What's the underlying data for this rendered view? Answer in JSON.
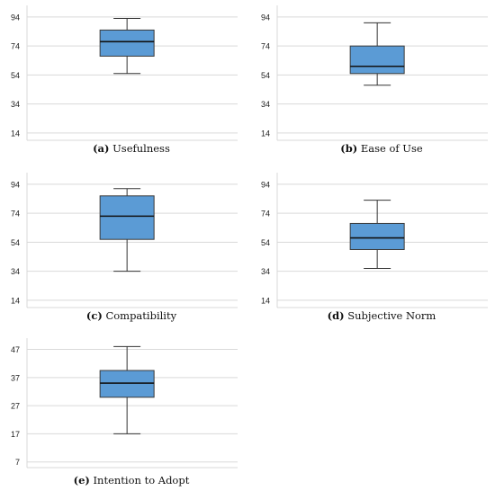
{
  "chart_data": [
    {
      "type": "boxplot",
      "caption_letter": "(a)",
      "caption_text": "Usefulness",
      "yticks": [
        14,
        34,
        54,
        74,
        94
      ],
      "ylim": [
        9,
        102
      ],
      "box": {
        "whisker_low": 55,
        "q1": 67,
        "median": 77,
        "q3": 85,
        "whisker_high": 93
      },
      "box_color": "#5b9bd5"
    },
    {
      "type": "boxplot",
      "caption_letter": "(b)",
      "caption_text": "Ease of Use",
      "yticks": [
        14,
        34,
        54,
        74,
        94
      ],
      "ylim": [
        9,
        102
      ],
      "box": {
        "whisker_low": 47,
        "q1": 55,
        "median": 60,
        "q3": 74,
        "whisker_high": 90
      },
      "box_color": "#5b9bd5"
    },
    {
      "type": "boxplot",
      "caption_letter": "(c)",
      "caption_text": "Compatibility",
      "yticks": [
        14,
        34,
        54,
        74,
        94
      ],
      "ylim": [
        9,
        102
      ],
      "box": {
        "whisker_low": 34,
        "q1": 56,
        "median": 72,
        "q3": 86,
        "whisker_high": 91
      },
      "box_color": "#5b9bd5"
    },
    {
      "type": "boxplot",
      "caption_letter": "(d)",
      "caption_text": "Subjective Norm",
      "yticks": [
        14,
        34,
        54,
        74,
        94
      ],
      "ylim": [
        9,
        102
      ],
      "box": {
        "whisker_low": 36,
        "q1": 49,
        "median": 57,
        "q3": 67,
        "whisker_high": 83
      },
      "box_color": "#5b9bd5"
    },
    {
      "type": "boxplot",
      "caption_letter": "(e)",
      "caption_text": "Intention to Adopt",
      "yticks": [
        7,
        17,
        27,
        37,
        47
      ],
      "ylim": [
        5,
        51
      ],
      "box": {
        "whisker_low": 17,
        "q1": 30,
        "median": 35,
        "q3": 39.5,
        "whisker_high": 48
      },
      "box_color": "#5b9bd5"
    }
  ]
}
